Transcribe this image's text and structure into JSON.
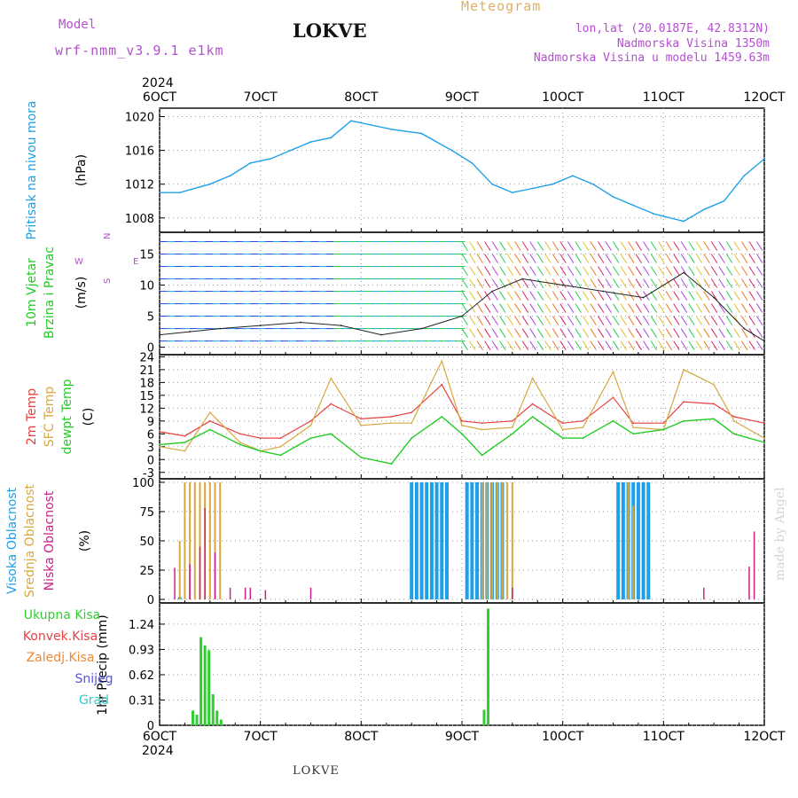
{
  "header": {
    "model_label": "Model",
    "model_name": "wrf-nmm_v3.9.1 e1km",
    "station": "LOKVE",
    "meteogram": "Meteogram",
    "coords": "lon,lat (20.0187E, 42.8312N)",
    "elevation": "Nadmorska Visina 1350m",
    "model_elevation": "Nadmorska Visina u modelu 1459.63m",
    "footer_station": "LOKVE",
    "credit": "made by Angel"
  },
  "colors": {
    "pressure": "#1fa0e8",
    "t2m": "#e84040",
    "sfc": "#d8a840",
    "dewpt": "#22cc22",
    "high_cloud": "#1ea0e8",
    "mid_cloud": "#d8a840",
    "low_cloud": "#cc2288",
    "total_precip": "#33cc33",
    "conv_precip": "#e84040",
    "frozen": "#ee8833",
    "snow": "#5555dd",
    "hail": "#33cccc",
    "axis_purple": "#b44fd0"
  },
  "chart_data": [
    {
      "type": "line",
      "title": "",
      "ylabel": "Pritisak na nivou mora",
      "unit": "(hPa)",
      "ylim": [
        1006.3,
        1021
      ],
      "yticks": [
        "1020",
        "1016",
        "1012",
        "1008"
      ],
      "xticks_top": [
        "2024",
        "6OCT",
        "7OCT",
        "8OCT",
        "9OCT",
        "10OCT",
        "11OCT",
        "12OCT"
      ],
      "grid": true,
      "series": [
        {
          "name": "",
          "x": [
            6.0,
            6.2,
            6.5,
            6.7,
            6.9,
            7.1,
            7.3,
            7.5,
            7.7,
            7.9,
            8.1,
            8.3,
            8.6,
            8.9,
            9.1,
            9.3,
            9.5,
            9.7,
            9.9,
            10.1,
            10.3,
            10.5,
            10.7,
            10.9,
            11.0,
            11.2,
            11.4,
            11.6,
            11.8,
            12.0
          ],
          "values": [
            1011,
            1011,
            1012,
            1013,
            1014.5,
            1015,
            1016,
            1017,
            1017.5,
            1019.5,
            1019,
            1018.5,
            1018,
            1016,
            1014.5,
            1012,
            1011,
            1011.5,
            1012,
            1013,
            1012,
            1010.5,
            1009.5,
            1008.5,
            1008.2,
            1007.6,
            1009,
            1010,
            1013,
            1015
          ]
        }
      ]
    },
    {
      "type": "line",
      "title": "",
      "ylabel": "10m Vjetar Brzina i Pravac",
      "unit": "(m/s)",
      "ylim": [
        -1.2,
        18.5
      ],
      "yticks": [
        "15",
        "10",
        "5",
        "0"
      ],
      "compass": [
        "N",
        "W",
        "E",
        "S"
      ],
      "grid": true,
      "series": [
        {
          "name": "",
          "x": [
            6.0,
            6.3,
            6.6,
            7.0,
            7.4,
            7.8,
            8.2,
            8.6,
            9.0,
            9.3,
            9.6,
            10.0,
            10.4,
            10.8,
            11.2,
            11.5,
            11.8,
            12.0
          ],
          "values": [
            2,
            2.5,
            3,
            3.5,
            4,
            3.5,
            2,
            3,
            5,
            9,
            11,
            10,
            9,
            8,
            12,
            8,
            3,
            1
          ]
        }
      ]
    },
    {
      "type": "line",
      "title": "",
      "ylabel": "2m Temp / SFC Temp / dewpt Temp",
      "unit": "(C)",
      "ylim": [
        -4.5,
        24.5
      ],
      "yticks": [
        "24",
        "21",
        "18",
        "15",
        "12",
        "9",
        "6",
        "3",
        "0",
        "-3"
      ],
      "grid": true,
      "series": [
        {
          "name": "2m Temp",
          "x": [
            6.0,
            6.25,
            6.5,
            6.8,
            7.0,
            7.2,
            7.5,
            7.7,
            8.0,
            8.3,
            8.5,
            8.8,
            9.0,
            9.2,
            9.5,
            9.7,
            10.0,
            10.2,
            10.5,
            10.7,
            11.0,
            11.2,
            11.5,
            11.7,
            12.0
          ],
          "values": [
            6.5,
            5.5,
            9,
            6,
            5,
            5,
            9,
            13,
            9.5,
            10,
            11,
            17.5,
            9,
            8.5,
            9,
            13,
            8.5,
            9,
            14.5,
            8.5,
            8.5,
            13.5,
            13,
            10,
            8.5
          ]
        },
        {
          "name": "SFC Temp",
          "x": [
            6.0,
            6.25,
            6.5,
            6.8,
            7.0,
            7.2,
            7.5,
            7.7,
            8.0,
            8.3,
            8.5,
            8.8,
            9.0,
            9.2,
            9.5,
            9.7,
            10.0,
            10.2,
            10.5,
            10.7,
            11.0,
            11.2,
            11.5,
            11.7,
            12.0
          ],
          "values": [
            3,
            2,
            11,
            4,
            2,
            3,
            8,
            19,
            8,
            8.5,
            8.5,
            23,
            8,
            7,
            7.5,
            19,
            7,
            7.5,
            20.5,
            7.5,
            7,
            21,
            17.5,
            9,
            5
          ]
        },
        {
          "name": "dewpt Temp",
          "x": [
            6.0,
            6.25,
            6.5,
            6.8,
            7.0,
            7.2,
            7.5,
            7.7,
            8.0,
            8.3,
            8.5,
            8.8,
            9.0,
            9.2,
            9.5,
            9.7,
            10.0,
            10.2,
            10.5,
            10.7,
            11.0,
            11.2,
            11.5,
            11.7,
            12.0
          ],
          "values": [
            3.5,
            4,
            7,
            3.5,
            2,
            1,
            5,
            6,
            0.5,
            -1,
            5,
            10,
            6,
            1,
            6,
            10,
            5,
            5,
            9,
            6,
            7,
            9,
            9.5,
            6,
            4
          ]
        }
      ]
    },
    {
      "type": "bar",
      "title": "",
      "ylabel": "Visoka Oblacnost / Srednja Oblacnost / Niska Oblacnost",
      "unit": "(%)",
      "ylim": [
        -3,
        103
      ],
      "yticks": [
        "100",
        "75",
        "50",
        "25",
        "0"
      ],
      "grid": true,
      "series": [
        {
          "name": "Visoka Oblacnost",
          "x": [
            6.2,
            8.5,
            8.55,
            8.6,
            8.65,
            8.7,
            8.75,
            8.8,
            8.85,
            9.05,
            9.1,
            9.15,
            9.2,
            9.25,
            9.3,
            9.35,
            9.4,
            10.55,
            10.6,
            10.65,
            10.7,
            10.75,
            10.8,
            10.85
          ],
          "values": [
            2,
            100,
            100,
            100,
            100,
            100,
            100,
            100,
            100,
            100,
            100,
            100,
            100,
            100,
            100,
            100,
            100,
            100,
            100,
            100,
            100,
            100,
            100,
            100
          ]
        },
        {
          "name": "Srednja Oblacnost",
          "x": [
            6.2,
            6.25,
            6.3,
            6.35,
            6.4,
            6.45,
            6.5,
            6.55,
            6.6,
            9.2,
            9.25,
            9.3,
            9.35,
            9.4,
            9.45,
            9.5,
            10.65,
            10.7
          ],
          "values": [
            50,
            100,
            100,
            100,
            100,
            100,
            100,
            100,
            100,
            100,
            100,
            100,
            100,
            100,
            100,
            100,
            100,
            80
          ]
        },
        {
          "name": "Niska Oblacnost",
          "x": [
            6.15,
            6.3,
            6.4,
            6.45,
            6.55,
            6.7,
            6.85,
            6.9,
            7.05,
            7.5,
            9.5,
            11.4,
            11.85,
            11.9
          ],
          "values": [
            27,
            30,
            45,
            78,
            40,
            10,
            10,
            10,
            8,
            10,
            10,
            10,
            28,
            58
          ]
        }
      ]
    },
    {
      "type": "bar",
      "title": "",
      "ylabel": "1hr Precip",
      "unit": "(mm)",
      "ylim": [
        0,
        1.5
      ],
      "yticks": [
        "1.24",
        "0.93",
        "0.62",
        "0.31",
        "0"
      ],
      "xticks": [
        "6OCT",
        "7OCT",
        "8OCT",
        "9OCT",
        "10OCT",
        "11OCT",
        "12OCT"
      ],
      "xsub": "2024",
      "legend": [
        "Ukupna Kisa",
        "Konvek.Kisa",
        "Zaledj.Kisa",
        "Snijeg",
        "Grad"
      ],
      "grid": true,
      "series": [
        {
          "name": "Ukupna Kisa",
          "x": [
            6.33,
            6.37,
            6.41,
            6.45,
            6.49,
            6.53,
            6.57,
            6.61,
            9.22,
            9.26
          ],
          "values": [
            0.18,
            0.13,
            1.08,
            0.98,
            0.92,
            0.38,
            0.18,
            0.07,
            0.19,
            1.43
          ]
        }
      ]
    }
  ]
}
